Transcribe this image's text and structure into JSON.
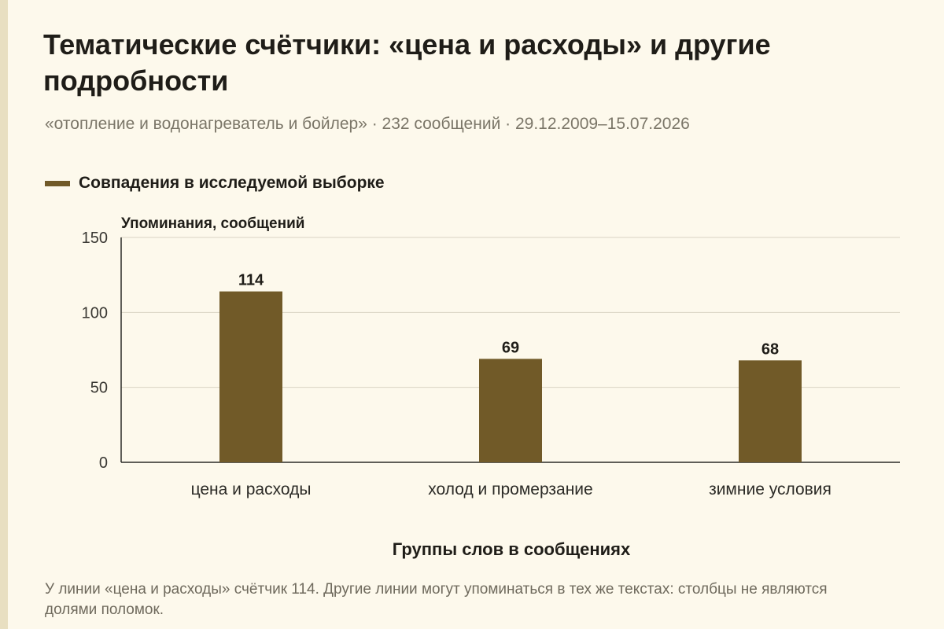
{
  "title": "Тематические счётчики: «цена и расходы» и другие подробности",
  "subtitle": "«отопление и водонагреватель и бойлер» · 232 сообщений · 29.12.2009–15.07.2026",
  "footnote": "У линии «цена и расходы» счётчик 114. Другие линии могут упоминаться в тех же текстах: столбцы не являются долями поломок.",
  "colors": {
    "bar": "#715a28",
    "grid": "#d9d4c4",
    "axis": "#2b2a26",
    "background": "#fdf9ec",
    "stripe": "#e8dfc1"
  },
  "chart_data": {
    "type": "bar",
    "title": "Тематические счётчики: «цена и расходы» и другие подробности",
    "xlabel": "Группы слов в сообщениях",
    "ylabel": "Упоминания, сообщений",
    "categories": [
      "цена и расходы",
      "холод и промерзание",
      "зимние условия"
    ],
    "series": [
      {
        "name": "Совпадения в исследуемой выборке",
        "values": [
          114,
          69,
          68
        ]
      }
    ],
    "ylim": [
      0,
      150
    ],
    "yticks": [
      0,
      50,
      100,
      150
    ],
    "grid": true,
    "legend": "top-left"
  }
}
